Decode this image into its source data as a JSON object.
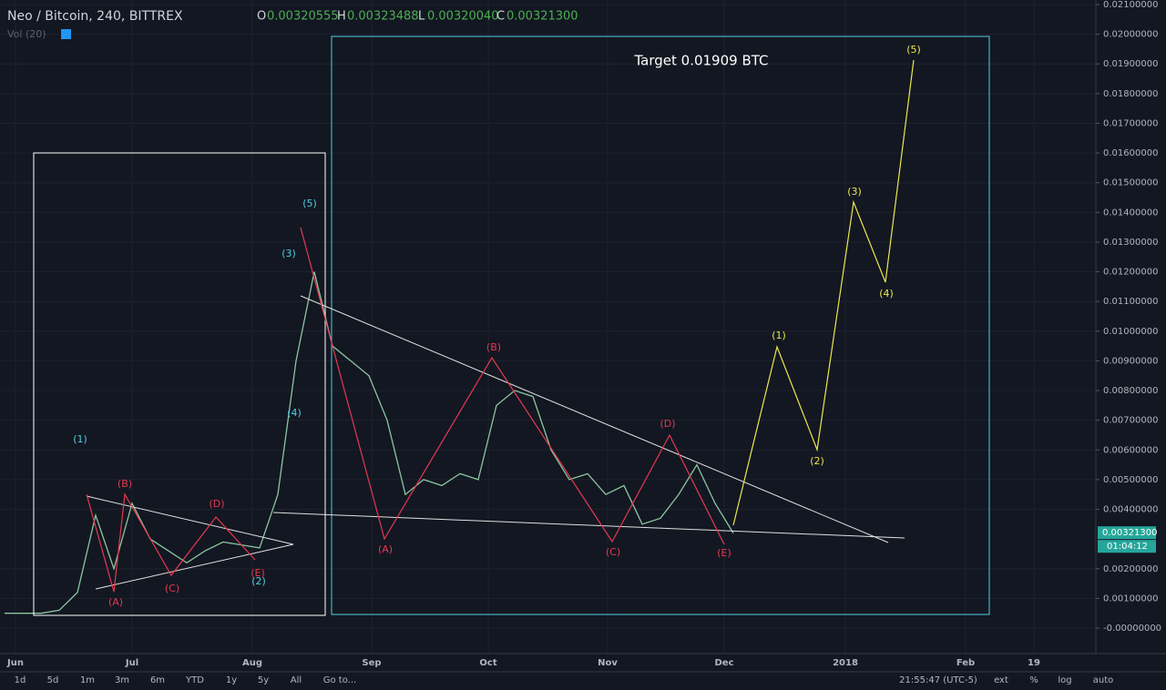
{
  "header": {
    "symbol": "Neo / Bitcoin, 240, BITTREX",
    "open_label": "O",
    "open": "0.00320555",
    "high_label": "H",
    "high": "0.00323488",
    "low_label": "L",
    "low": "0.00320040",
    "close_label": "C",
    "close": "0.00321300",
    "volume": "Vol (20)"
  },
  "price_axis": {
    "ticks": [
      {
        "value": 0.021,
        "label": "0.02100000"
      },
      {
        "value": 0.02,
        "label": "0.02000000"
      },
      {
        "value": 0.019,
        "label": "0.01900000"
      },
      {
        "value": 0.018,
        "label": "0.01800000"
      },
      {
        "value": 0.017,
        "label": "0.01700000"
      },
      {
        "value": 0.016,
        "label": "0.01600000"
      },
      {
        "value": 0.015,
        "label": "0.01500000"
      },
      {
        "value": 0.014,
        "label": "0.01400000"
      },
      {
        "value": 0.013,
        "label": "0.01300000"
      },
      {
        "value": 0.012,
        "label": "0.01200000"
      },
      {
        "value": 0.011,
        "label": "0.01100000"
      },
      {
        "value": 0.01,
        "label": "0.01000000"
      },
      {
        "value": 0.009,
        "label": "0.00900000"
      },
      {
        "value": 0.008,
        "label": "0.00800000"
      },
      {
        "value": 0.007,
        "label": "0.00700000"
      },
      {
        "value": 0.006,
        "label": "0.00600000"
      },
      {
        "value": 0.005,
        "label": "0.00500000"
      },
      {
        "value": 0.004,
        "label": "0.00400000"
      },
      {
        "value": 0.002,
        "label": "0.00200000"
      },
      {
        "value": 0.001,
        "label": "0.00100000"
      },
      {
        "value": 0,
        "label": "-0.00000000"
      }
    ],
    "ylim": [
      0,
      0.021
    ],
    "current_price": {
      "value": 0.003213,
      "label": "0.00321300"
    },
    "countdown": "01:04:12"
  },
  "price_series": {
    "values": [
      0.0005,
      0.0005,
      0.0005,
      0.0006,
      0.0012,
      0.0038,
      0.002,
      0.0042,
      0.003,
      0.0026,
      0.0022,
      0.0026,
      0.0029,
      0.0028,
      0.0027,
      0.0045,
      0.009,
      0.012,
      0.0095,
      0.009,
      0.0085,
      0.007,
      0.0045,
      0.005,
      0.0048,
      0.0052,
      0.005,
      0.0075,
      0.008,
      0.0078,
      0.006,
      0.005,
      0.0052,
      0.0045,
      0.0048,
      0.0035,
      0.0037,
      0.0045,
      0.0055,
      0.0042,
      0.0032
    ],
    "color": "#8bc6a0"
  },
  "time_axis": [
    "Jun",
    "Jul",
    "Aug",
    "Sep",
    "Oct",
    "Nov",
    "Dec",
    "2018",
    "Feb",
    "19"
  ],
  "annotation": "Target 0.01909 BTC",
  "waves_left": [
    "(1)",
    "(A)",
    "(B)",
    "(C)",
    "(D)",
    "(E)",
    "(2)",
    "(3)",
    "(4)",
    "(5)"
  ],
  "waves_right": [
    "(A)",
    "(B)",
    "(C)",
    "(D)",
    "(E)"
  ],
  "waves_projection": [
    "(1)",
    "(2)",
    "(3)",
    "(4)",
    "(5)"
  ],
  "toolbar": [
    "1d",
    "5d",
    "1m",
    "3m",
    "6m",
    "YTD",
    "1y",
    "5y",
    "All",
    "Go to..."
  ],
  "status": {
    "time": "21:55:47 (UTC-5)",
    "buttons": [
      "ext",
      "%",
      "log",
      "auto"
    ]
  }
}
